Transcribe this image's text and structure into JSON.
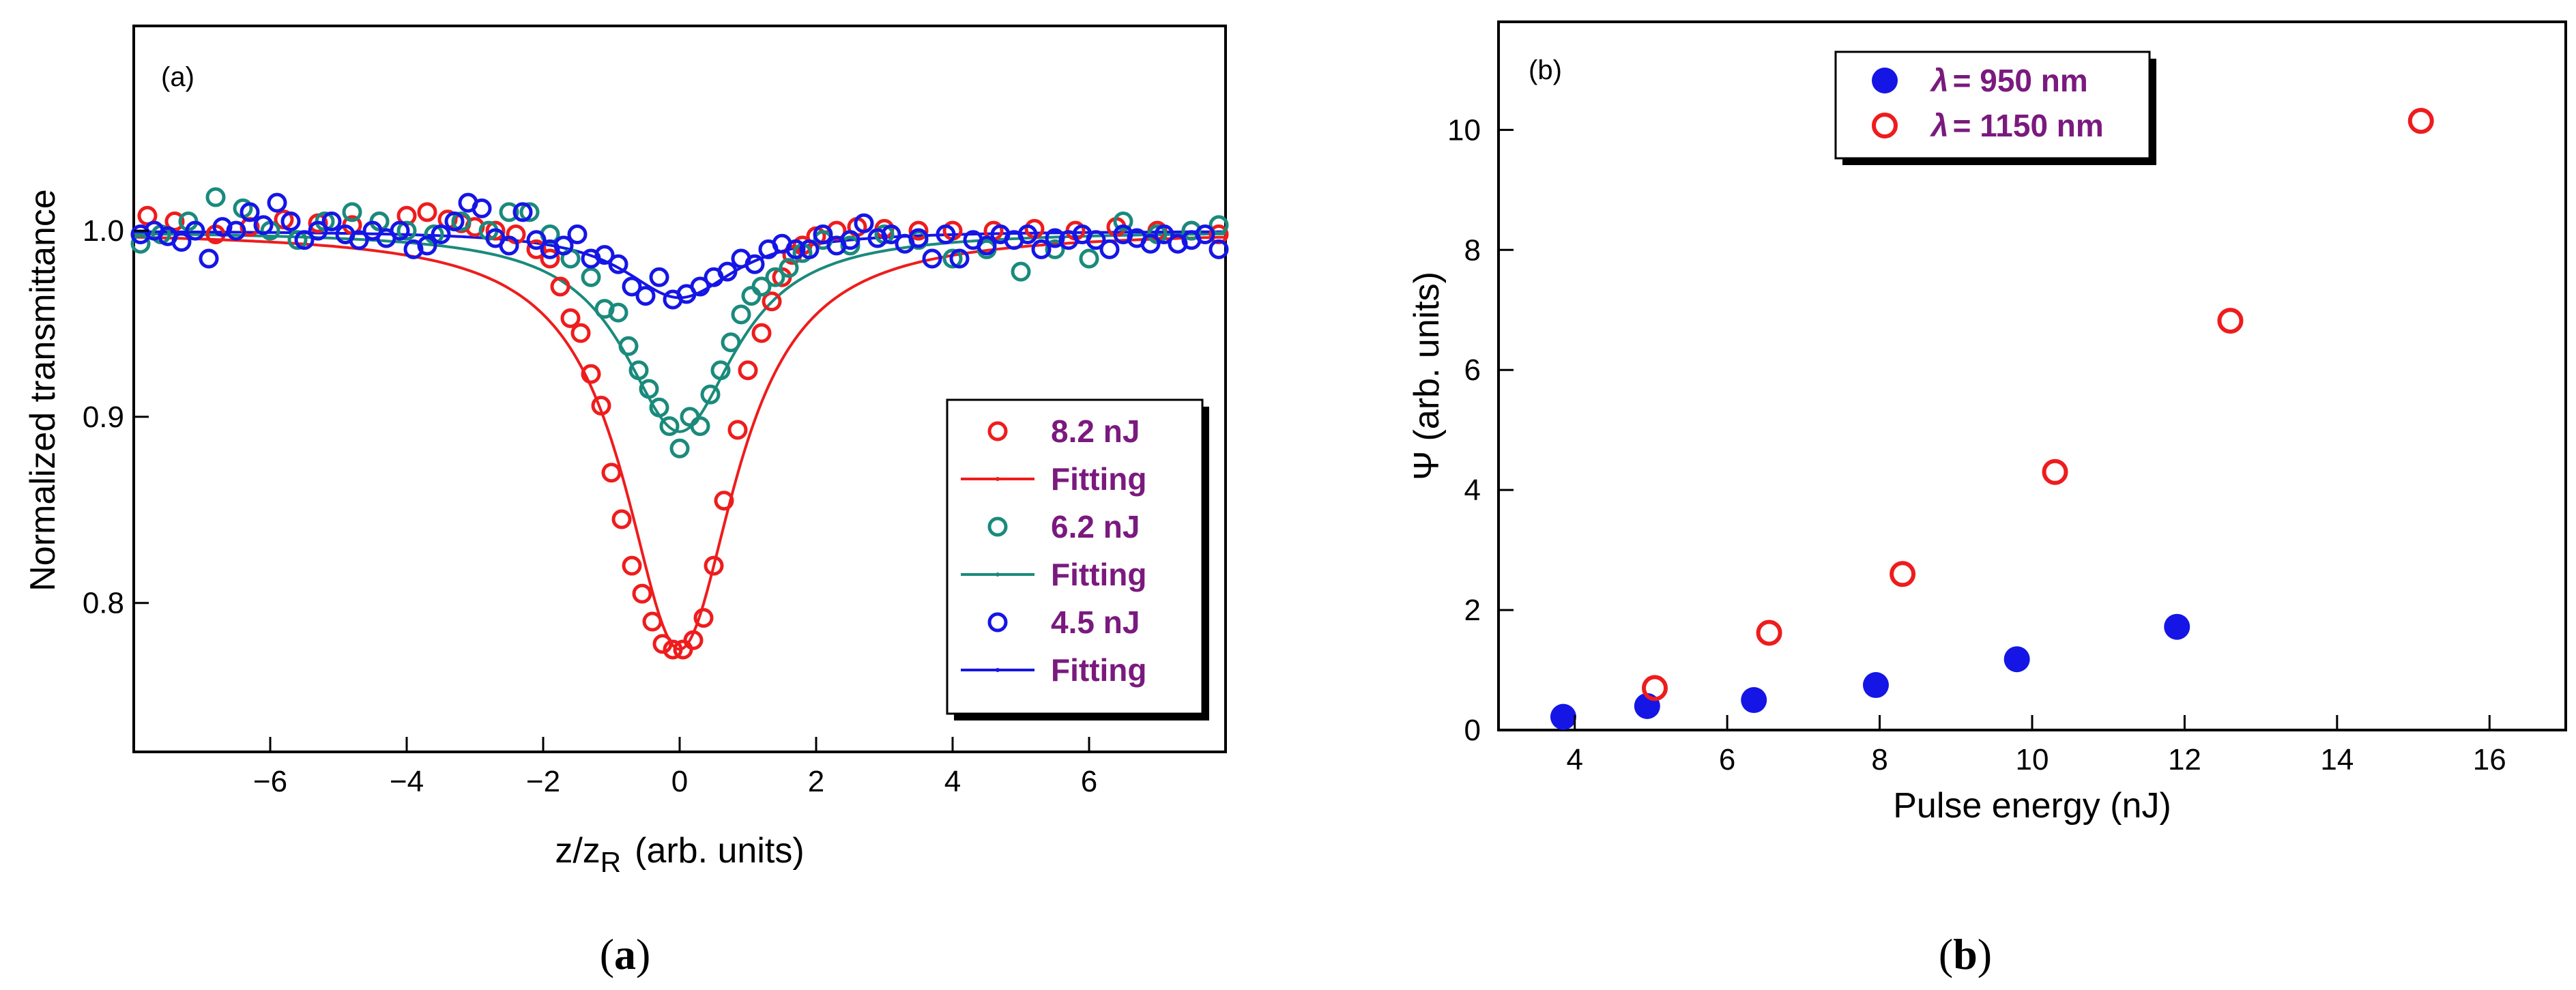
{
  "colors": {
    "red": "#ee1c1c",
    "teal": "#1a8a7c",
    "blue": "#1515e6",
    "legend_text": "#7a1a7e"
  },
  "chart_data": [
    {
      "panel": "(a)",
      "caption": "a",
      "type": "scatter",
      "xlabel_main": "z/z",
      "xlabel_sub": "R",
      "xlabel_units": "(arb. units)",
      "ylabel": "Normalized transmittance",
      "xlim": [
        -8,
        8
      ],
      "ylim": [
        0.72,
        1.11
      ],
      "xticks": [
        -6,
        -4,
        -2,
        0,
        2,
        4,
        6
      ],
      "xtick_labels": [
        "−6",
        "−4",
        "−2",
        "0",
        "2",
        "4",
        "6"
      ],
      "yticks": [
        0.8,
        0.9,
        1.0
      ],
      "ytick_labels": [
        "0.8",
        "0.9",
        "1.0"
      ],
      "legend": [
        "8.2 nJ",
        "Fitting",
        "6.2 nJ",
        "Fitting",
        "4.5 nJ",
        "Fitting"
      ],
      "series": [
        {
          "name": "8.2 nJ",
          "marker": "open-circle",
          "color": "red",
          "x": [
            -7.8,
            -7.4,
            -6.8,
            -6.3,
            -5.8,
            -5.3,
            -4.8,
            -4.4,
            -4.0,
            -3.7,
            -3.4,
            -3.2,
            -3.0,
            -2.7,
            -2.4,
            -2.1,
            -1.9,
            -1.75,
            -1.6,
            -1.45,
            -1.3,
            -1.15,
            -1.0,
            -0.85,
            -0.7,
            -0.55,
            -0.4,
            -0.25,
            -0.1,
            0.05,
            0.2,
            0.35,
            0.5,
            0.65,
            0.85,
            1.0,
            1.2,
            1.35,
            1.5,
            1.65,
            1.8,
            2.0,
            2.3,
            2.6,
            3.0,
            3.5,
            4.0,
            4.6,
            5.2,
            5.8,
            6.4,
            7.0,
            7.5,
            7.9
          ],
          "y": [
            1.008,
            1.005,
            0.998,
            1.002,
            1.006,
            1.004,
            1.003,
            1.005,
            1.008,
            1.01,
            1.006,
            1.004,
            1.002,
            1.0,
            0.998,
            0.99,
            0.985,
            0.97,
            0.953,
            0.945,
            0.923,
            0.906,
            0.87,
            0.845,
            0.82,
            0.805,
            0.79,
            0.778,
            0.775,
            0.775,
            0.78,
            0.792,
            0.82,
            0.855,
            0.893,
            0.925,
            0.945,
            0.962,
            0.975,
            0.987,
            0.992,
            0.997,
            1.0,
            1.002,
            1.001,
            1.0,
            1.0,
            1.0,
            1.001,
            1.0,
            1.002,
            1.0,
            1.0,
            0.998
          ]
        },
        {
          "name": "Fitting",
          "type": "line",
          "color": "red",
          "model": "1 - depth/(1+x^2)",
          "depth": 0.225
        },
        {
          "name": "6.2 nJ",
          "marker": "open-circle",
          "color": "teal",
          "x": [
            -7.9,
            -7.6,
            -7.2,
            -6.8,
            -6.4,
            -6.0,
            -5.6,
            -5.2,
            -4.8,
            -4.4,
            -4.0,
            -3.6,
            -3.2,
            -2.8,
            -2.5,
            -2.2,
            -1.9,
            -1.6,
            -1.3,
            -1.1,
            -0.9,
            -0.75,
            -0.6,
            -0.45,
            -0.3,
            -0.15,
            0.0,
            0.15,
            0.3,
            0.45,
            0.6,
            0.75,
            0.9,
            1.05,
            1.2,
            1.4,
            1.6,
            1.8,
            2.1,
            2.5,
            3.0,
            3.5,
            4.0,
            4.5,
            5.0,
            5.5,
            6.0,
            6.5,
            7.0,
            7.5,
            7.9
          ],
          "y": [
            0.993,
            0.998,
            1.005,
            1.018,
            1.012,
            1.0,
            0.995,
            1.005,
            1.01,
            1.005,
            1.0,
            0.998,
            1.005,
            1.0,
            1.01,
            1.01,
            0.998,
            0.985,
            0.975,
            0.958,
            0.956,
            0.938,
            0.925,
            0.915,
            0.905,
            0.895,
            0.883,
            0.9,
            0.895,
            0.912,
            0.925,
            0.94,
            0.955,
            0.965,
            0.97,
            0.975,
            0.98,
            0.988,
            0.995,
            0.992,
            0.998,
            0.995,
            0.985,
            0.99,
            0.978,
            0.99,
            0.985,
            1.005,
            0.998,
            1.0,
            1.003
          ]
        },
        {
          "name": "Fitting",
          "type": "line",
          "color": "teal",
          "model": "1 - depth/(1+x^2)",
          "depth": 0.108
        },
        {
          "name": "4.5 nJ",
          "marker": "open-circle",
          "color": "blue",
          "x": [
            -7.9,
            -7.7,
            -7.5,
            -7.3,
            -7.1,
            -6.9,
            -6.7,
            -6.5,
            -6.3,
            -6.1,
            -5.9,
            -5.7,
            -5.5,
            -5.3,
            -5.1,
            -4.9,
            -4.7,
            -4.5,
            -4.3,
            -4.1,
            -3.9,
            -3.7,
            -3.5,
            -3.3,
            -3.1,
            -2.9,
            -2.7,
            -2.5,
            -2.3,
            -2.1,
            -1.9,
            -1.7,
            -1.5,
            -1.3,
            -1.1,
            -0.9,
            -0.7,
            -0.5,
            -0.3,
            -0.1,
            0.1,
            0.3,
            0.5,
            0.7,
            0.9,
            1.1,
            1.3,
            1.5,
            1.7,
            1.9,
            2.1,
            2.3,
            2.5,
            2.7,
            2.9,
            3.1,
            3.3,
            3.5,
            3.7,
            3.9,
            4.1,
            4.3,
            4.5,
            4.7,
            4.9,
            5.1,
            5.3,
            5.5,
            5.7,
            5.9,
            6.1,
            6.3,
            6.5,
            6.7,
            6.9,
            7.1,
            7.3,
            7.5,
            7.7,
            7.9
          ],
          "y": [
            0.998,
            1.0,
            0.997,
            0.994,
            1.0,
            0.985,
            1.002,
            1.0,
            1.01,
            1.003,
            1.015,
            1.005,
            0.995,
            1.0,
            1.005,
            0.998,
            0.995,
            1.0,
            0.996,
            1.0,
            0.99,
            0.992,
            0.998,
            1.005,
            1.015,
            1.012,
            0.996,
            0.992,
            1.01,
            0.995,
            0.99,
            0.992,
            0.998,
            0.985,
            0.987,
            0.982,
            0.97,
            0.965,
            0.975,
            0.963,
            0.966,
            0.97,
            0.975,
            0.978,
            0.985,
            0.982,
            0.99,
            0.993,
            0.99,
            0.99,
            0.998,
            0.992,
            0.995,
            1.004,
            0.996,
            0.998,
            0.993,
            0.996,
            0.985,
            0.998,
            0.985,
            0.995,
            0.992,
            0.998,
            0.995,
            0.998,
            0.99,
            0.996,
            0.995,
            0.998,
            0.995,
            0.99,
            0.998,
            0.996,
            0.993,
            0.998,
            0.993,
            0.995,
            0.998,
            0.99
          ]
        },
        {
          "name": "Fitting",
          "type": "line",
          "color": "blue",
          "model": "1 - depth/(1+x^2)",
          "depth": 0.036
        }
      ]
    },
    {
      "panel": "(b)",
      "caption": "b",
      "type": "scatter",
      "xlabel": "Pulse energy (nJ)",
      "ylabel_symbol": "Ψ",
      "ylabel": "(arb. units)",
      "xlim": [
        3,
        17
      ],
      "ylim": [
        0,
        11.8
      ],
      "xticks": [
        4,
        6,
        8,
        10,
        12,
        14,
        16
      ],
      "xtick_labels": [
        "4",
        "6",
        "8",
        "10",
        "12",
        "14",
        "16"
      ],
      "yticks": [
        0,
        2,
        4,
        6,
        8,
        10
      ],
      "ytick_labels": [
        "0",
        "2",
        "4",
        "6",
        "8",
        "10"
      ],
      "legend_lambda": "λ",
      "legend": [
        "= 950 nm",
        "= 1150 nm"
      ],
      "series": [
        {
          "name": "λ = 950 nm",
          "marker": "filled-circle",
          "color": "blue",
          "x": [
            3.85,
            4.95,
            6.35,
            7.95,
            9.8,
            11.9
          ],
          "y": [
            0.22,
            0.4,
            0.5,
            0.75,
            1.18,
            1.72
          ]
        },
        {
          "name": "λ = 1150 nm",
          "marker": "open-circle",
          "color": "red",
          "x": [
            5.05,
            6.55,
            8.3,
            10.3,
            12.6,
            15.1
          ],
          "y": [
            0.7,
            1.62,
            2.6,
            4.3,
            6.82,
            10.15
          ]
        }
      ]
    }
  ]
}
